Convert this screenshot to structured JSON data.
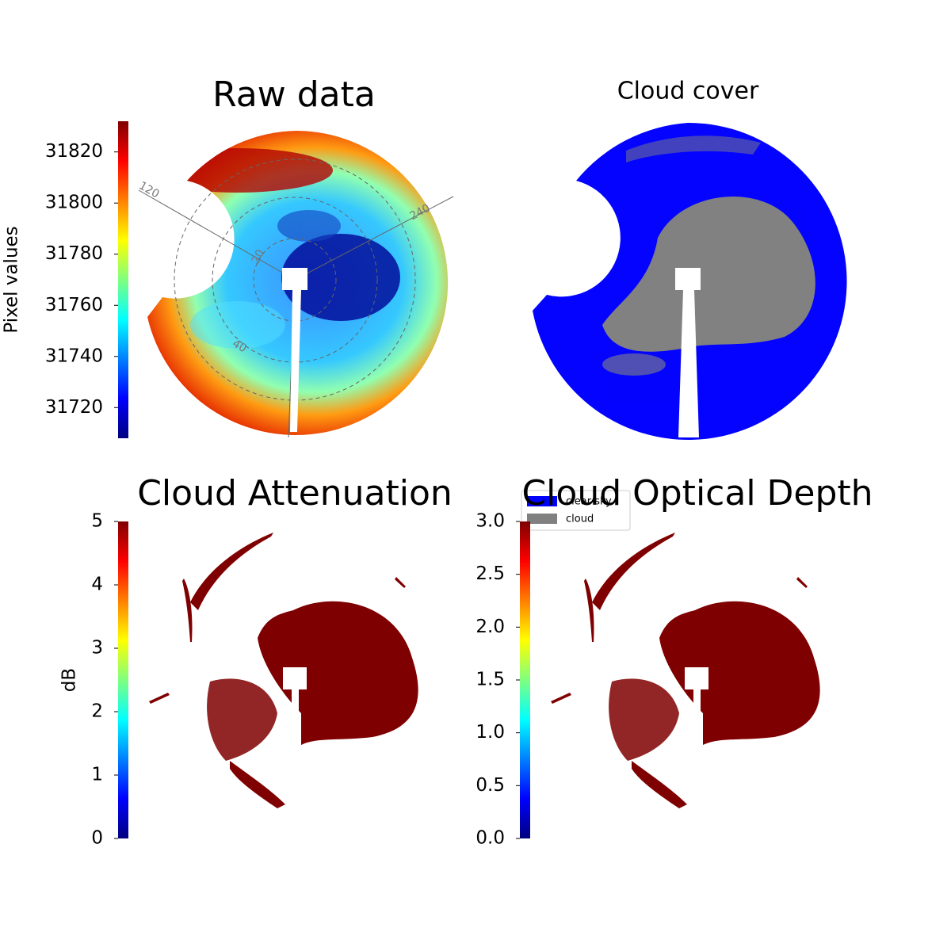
{
  "chart_data": [
    {
      "type": "image",
      "title": "Raw data",
      "ylabel": "Pixel values",
      "colormap": "jet",
      "ylim": [
        31708,
        31832
      ],
      "yticks": [
        31720,
        31740,
        31760,
        31780,
        31800,
        31820
      ],
      "annotations": [
        "120",
        "240",
        "20",
        "40"
      ]
    },
    {
      "type": "image",
      "title": "Cloud cover",
      "legend": {
        "labels": [
          "clear sky",
          "cloud"
        ],
        "colors": [
          "#0000ff",
          "#808080"
        ]
      }
    },
    {
      "type": "image",
      "title": "Cloud Attenuation",
      "ylabel": "dB",
      "colormap": "jet",
      "ylim": [
        0,
        5
      ],
      "yticks": [
        0,
        1,
        2,
        3,
        4,
        5
      ]
    },
    {
      "type": "image",
      "title": "Cloud Optical Depth",
      "colormap": "jet",
      "ylim": [
        0,
        3
      ],
      "yticks": [
        {
          "value": 0,
          "label": "0.0"
        },
        {
          "value": 0.5,
          "label": "0.5"
        },
        {
          "value": 1,
          "label": "1.0"
        },
        {
          "value": 1.5,
          "label": "1.5"
        },
        {
          "value": 2,
          "label": "2.0"
        },
        {
          "value": 2.5,
          "label": "2.5"
        },
        {
          "value": 3,
          "label": "3.0"
        }
      ]
    }
  ]
}
